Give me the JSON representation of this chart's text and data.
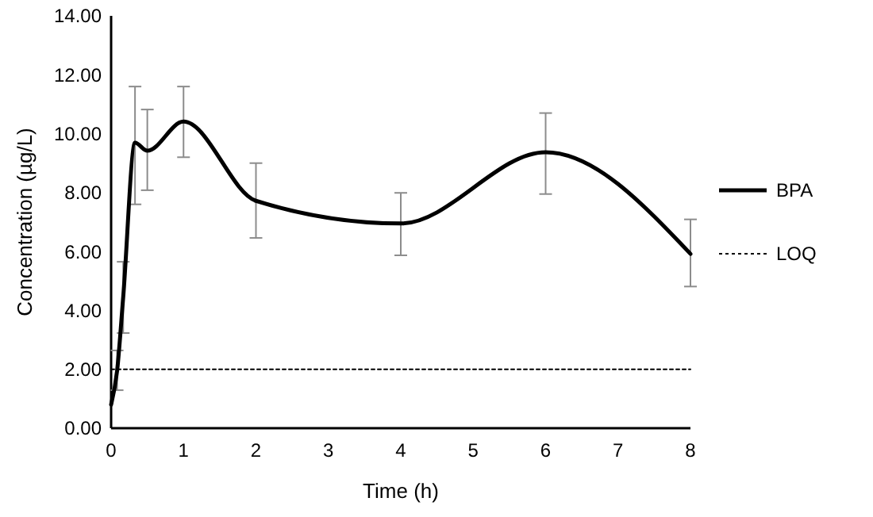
{
  "chart_data": {
    "type": "line",
    "xlabel": "Time (h)",
    "ylabel": "Concentration (µg/L)",
    "xlim": [
      0,
      8
    ],
    "xticks": [
      0,
      1,
      2,
      3,
      4,
      5,
      6,
      7,
      8
    ],
    "ylim": [
      0,
      14
    ],
    "yticks": [
      {
        "value": 0,
        "label": "0.00"
      },
      {
        "value": 2,
        "label": "2.00"
      },
      {
        "value": 4,
        "label": "4.00"
      },
      {
        "value": 6,
        "label": "6.00"
      },
      {
        "value": 8,
        "label": "8.00"
      },
      {
        "value": 10,
        "label": "10.00"
      },
      {
        "value": 12,
        "label": "12.00"
      },
      {
        "value": 14,
        "label": "14.00"
      }
    ],
    "grid": false,
    "legend": "right",
    "marker": "none",
    "series": [
      {
        "name": "BPA",
        "color": "#000000",
        "line_style": "solid",
        "x": [
          0,
          0.083,
          0.167,
          0.33,
          0.5,
          1,
          2,
          4,
          6,
          8
        ],
        "values": [
          0.8,
          1.95,
          4.45,
          9.69,
          9.42,
          10.41,
          7.72,
          6.95,
          9.37,
          5.92
        ],
        "errors": [
          null,
          [
            1.29,
            2.64
          ],
          [
            3.23,
            5.65
          ],
          [
            7.6,
            11.6
          ],
          [
            8.08,
            10.82
          ],
          [
            9.2,
            11.6
          ],
          [
            6.46,
            9.0
          ],
          [
            5.87,
            7.99
          ],
          [
            7.95,
            10.7
          ],
          [
            4.81,
            7.09
          ]
        ]
      },
      {
        "name": "LOQ",
        "color": "#000000",
        "line_style": "dotted",
        "x": [
          0,
          8
        ],
        "values": [
          2,
          2
        ]
      }
    ]
  }
}
